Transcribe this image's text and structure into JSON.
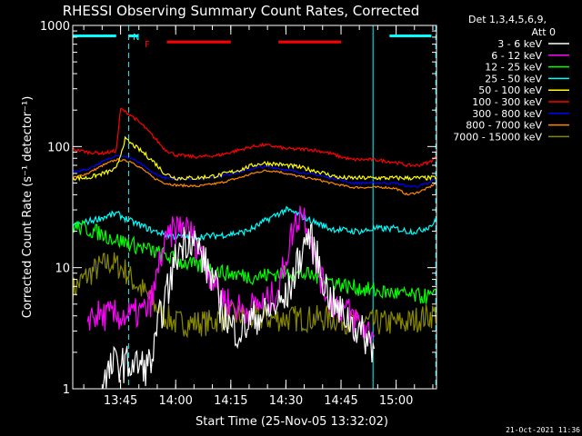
{
  "footer": {
    "timestamp": "21-Oct-2021 11:36"
  },
  "chart_data": {
    "type": "line",
    "title": "RHESSI Observing Summary Count Rates, Corrected",
    "xlabel": "Start Time (25-Nov-05 13:32:02)",
    "ylabel": "Corrected Count Rate (s⁻¹ detector⁻¹)",
    "yscale": "log",
    "ylim": [
      1,
      1000
    ],
    "xlim": [
      13.533,
      15.183
    ],
    "x_ticks": [
      {
        "label": "13:45",
        "value": 13.75
      },
      {
        "label": "14:00",
        "value": 14.0
      },
      {
        "label": "14:15",
        "value": 14.25
      },
      {
        "label": "14:30",
        "value": 14.5
      },
      {
        "label": "14:45",
        "value": 14.75
      },
      {
        "label": "15:00",
        "value": 15.0
      }
    ],
    "y_ticks": [
      {
        "label": "1",
        "value": 1
      },
      {
        "label": "10",
        "value": 10
      },
      {
        "label": "100",
        "value": 100
      },
      {
        "label": "1000",
        "value": 1000
      }
    ],
    "legend": {
      "position": "right",
      "header": [
        "Det 1,3,4,5,6,9,",
        "Att 0"
      ]
    },
    "annotations": [
      {
        "label": "N",
        "color": "#00ffff"
      },
      {
        "label": "F",
        "color": "#ff0000"
      }
    ],
    "bars": [
      {
        "color": "#00ffff",
        "x": [
          13.533,
          13.73
        ],
        "y": 820
      },
      {
        "color": "#00ffff",
        "x": [
          13.787,
          13.83
        ],
        "y": 820
      },
      {
        "color": "#ff0000",
        "x": [
          13.96,
          14.25
        ],
        "y": 730
      },
      {
        "color": "#ff0000",
        "x": [
          14.466,
          14.75
        ],
        "y": 730
      },
      {
        "color": "#00ffff",
        "x": [
          14.97,
          15.16
        ],
        "y": 820
      }
    ],
    "vlines": [
      {
        "x": 13.533,
        "color": "#00ffff",
        "style": "solid"
      },
      {
        "x": 13.787,
        "color": "#00ffff",
        "style": "dashed"
      },
      {
        "x": 14.895,
        "color": "#00ffff",
        "style": "solid"
      },
      {
        "x": 15.18,
        "color": "#00ffff",
        "style": "dashed"
      }
    ],
    "series": [
      {
        "name": "3 - 6 keV",
        "color": "#ffffff",
        "noise": 0.35,
        "x": [
          13.67,
          13.72,
          13.8,
          13.87,
          13.9,
          13.93,
          13.97,
          14.0,
          14.03,
          14.07,
          14.1,
          14.13,
          14.17,
          14.2,
          14.25,
          14.3,
          14.33,
          14.37,
          14.4,
          14.43,
          14.47,
          14.5,
          14.53,
          14.57,
          14.6,
          14.63,
          14.67,
          14.7,
          14.73,
          14.77,
          14.8,
          14.83,
          14.87,
          14.9
        ],
        "y": [
          1.1,
          1.6,
          1.6,
          1.5,
          1.9,
          4,
          7,
          12,
          16,
          18,
          15,
          11,
          8,
          5,
          3.2,
          3,
          3.5,
          4,
          4,
          4.5,
          5,
          5.5,
          8,
          13,
          19,
          14,
          8,
          5.5,
          4.5,
          4,
          3.5,
          3,
          2.6,
          2.2
        ]
      },
      {
        "name": "6 - 12 keV",
        "color": "#ff00ff",
        "noise": 0.3,
        "x": [
          13.6,
          13.67,
          13.73,
          13.8,
          13.87,
          13.9,
          13.93,
          13.97,
          14.0,
          14.03,
          14.07,
          14.1,
          14.13,
          14.17,
          14.2,
          14.25,
          14.3,
          14.33,
          14.37,
          14.4,
          14.43,
          14.47,
          14.5,
          14.53,
          14.57,
          14.6,
          14.63,
          14.67,
          14.7,
          14.73,
          14.77,
          14.8,
          14.83,
          14.87,
          14.9
        ],
        "y": [
          4,
          4,
          4,
          4,
          4.5,
          6,
          12,
          18,
          21,
          22,
          19,
          15,
          11,
          8,
          6,
          5,
          4.5,
          4.5,
          5,
          5,
          5.5,
          7,
          12,
          20,
          30,
          23,
          12,
          7,
          5.5,
          5,
          4.5,
          4,
          3.5,
          3,
          2.8
        ]
      },
      {
        "name": "12 - 25 keV",
        "color": "#00ff00",
        "noise": 0.15,
        "x": [
          13.533,
          13.58,
          13.63,
          13.68,
          13.73,
          13.78,
          13.83,
          13.88,
          13.93,
          13.98,
          14.03,
          14.08,
          14.13,
          14.18,
          14.23,
          14.28,
          14.33,
          14.38,
          14.43,
          14.48,
          14.53,
          14.58,
          14.63,
          14.68,
          14.73,
          14.78,
          14.83,
          14.88,
          14.93,
          14.98,
          15.03,
          15.08,
          15.13,
          15.18
        ],
        "y": [
          22,
          21,
          20,
          18.5,
          17,
          16,
          15,
          14,
          13,
          12,
          11,
          10.5,
          10,
          9.5,
          9,
          8.8,
          8.5,
          8.5,
          8.8,
          9,
          9,
          8.8,
          8.5,
          8,
          7.5,
          7,
          6.8,
          6.5,
          6.3,
          6.2,
          6,
          5.8,
          5.8,
          5.8
        ]
      },
      {
        "name": "25 - 50 keV",
        "color": "#00ffff",
        "noise": 0.06,
        "x": [
          13.533,
          13.6,
          13.67,
          13.73,
          13.8,
          13.85,
          13.9,
          13.95,
          14.0,
          14.05,
          14.1,
          14.2,
          14.3,
          14.35,
          14.4,
          14.45,
          14.5,
          14.55,
          14.6,
          14.65,
          14.7,
          14.75,
          14.8,
          14.85,
          14.9,
          14.95,
          15.0,
          15.05,
          15.1,
          15.15,
          15.18
        ],
        "y": [
          22,
          24,
          26,
          28,
          24,
          22,
          20,
          19,
          18,
          18,
          18,
          18.5,
          19.5,
          21,
          24,
          27,
          30,
          28,
          25,
          23,
          21,
          20.5,
          20,
          20,
          21,
          21,
          21,
          20,
          20,
          22,
          24
        ]
      },
      {
        "name": "50 - 100 keV",
        "color": "#ffff00",
        "noise": 0.04,
        "x": [
          13.533,
          13.6,
          13.67,
          13.73,
          13.77,
          13.8,
          13.85,
          13.9,
          13.95,
          14.0,
          14.1,
          14.2,
          14.3,
          14.35,
          14.4,
          14.45,
          14.5,
          14.55,
          14.6,
          14.65,
          14.7,
          14.75,
          14.8,
          14.85,
          14.9,
          14.95,
          15.0,
          15.05,
          15.1,
          15.15,
          15.18
        ],
        "y": [
          55,
          55,
          60,
          65,
          115,
          105,
          90,
          75,
          60,
          55,
          55,
          58,
          65,
          70,
          73,
          72,
          70,
          68,
          65,
          62,
          58,
          55,
          55,
          55,
          55,
          55,
          55,
          55,
          55,
          55,
          55
        ]
      },
      {
        "name": "100 - 300 keV",
        "color": "#ff0000",
        "noise": 0.03,
        "x": [
          13.533,
          13.6,
          13.67,
          13.73,
          13.75,
          13.8,
          13.85,
          13.9,
          13.95,
          14.0,
          14.1,
          14.2,
          14.3,
          14.35,
          14.4,
          14.45,
          14.5,
          14.55,
          14.6,
          14.65,
          14.7,
          14.75,
          14.8,
          14.85,
          14.9,
          14.95,
          15.0,
          15.05,
          15.1,
          15.15,
          15.18
        ],
        "y": [
          95,
          90,
          88,
          92,
          205,
          180,
          150,
          120,
          95,
          85,
          82,
          85,
          95,
          100,
          103,
          100,
          96,
          95,
          95,
          92,
          88,
          82,
          78,
          78,
          78,
          76,
          74,
          70,
          70,
          74,
          82
        ]
      },
      {
        "name": "300 - 800 keV",
        "color": "#0000ff",
        "noise": 0.02,
        "x": [
          13.533,
          13.6,
          13.67,
          13.73,
          13.8,
          13.85,
          13.9,
          13.95,
          14.0,
          14.1,
          14.2,
          14.3,
          14.35,
          14.4,
          14.45,
          14.5,
          14.55,
          14.6,
          14.65,
          14.7,
          14.75,
          14.8,
          14.85,
          14.9,
          14.95,
          15.0,
          15.05,
          15.1,
          15.15,
          15.18
        ],
        "y": [
          62,
          65,
          75,
          85,
          80,
          70,
          60,
          55,
          54,
          54,
          57,
          62,
          66,
          68,
          67,
          64,
          62,
          60,
          58,
          55,
          53,
          50,
          50,
          50,
          50,
          50,
          47,
          47,
          50,
          55
        ]
      },
      {
        "name": "800 - 7000 keV",
        "color": "#ff8800",
        "noise": 0.02,
        "x": [
          13.533,
          13.6,
          13.67,
          13.73,
          13.8,
          13.85,
          13.9,
          13.95,
          14.0,
          14.1,
          14.2,
          14.3,
          14.35,
          14.4,
          14.45,
          14.5,
          14.55,
          14.6,
          14.65,
          14.7,
          14.75,
          14.8,
          14.85,
          14.9,
          14.95,
          15.0,
          15.05,
          15.1,
          15.15,
          15.18
        ],
        "y": [
          55,
          60,
          70,
          78,
          75,
          65,
          55,
          50,
          48,
          47,
          50,
          56,
          60,
          63,
          63,
          60,
          57,
          55,
          53,
          50,
          48,
          46,
          46,
          46,
          46,
          45,
          40,
          42,
          46,
          50
        ]
      },
      {
        "name": "7000 - 15000 keV",
        "color": "#888800",
        "noise": 0.25,
        "x": [
          13.533,
          13.58,
          13.63,
          13.67,
          13.7,
          13.73,
          13.77,
          13.8,
          13.85,
          13.9,
          13.95,
          14.0,
          14.05,
          14.1,
          14.15,
          14.2,
          14.25,
          14.3,
          14.35,
          14.4,
          14.45,
          14.5,
          14.55,
          14.6,
          14.65,
          14.7,
          14.75,
          14.8,
          14.85,
          14.9,
          14.95,
          15.0,
          15.05,
          15.1,
          15.15,
          15.18
        ],
        "y": [
          6.5,
          8,
          9.5,
          10.5,
          11,
          10.5,
          9.5,
          8,
          6.5,
          5,
          4,
          3.5,
          3.5,
          3.5,
          3.5,
          3.8,
          4,
          4,
          3.8,
          3.8,
          3.8,
          3.8,
          3.8,
          3.8,
          3.8,
          3.8,
          3.8,
          3.5,
          3.5,
          3.5,
          3.5,
          3.5,
          3.5,
          3.8,
          4,
          4.2
        ]
      }
    ]
  }
}
